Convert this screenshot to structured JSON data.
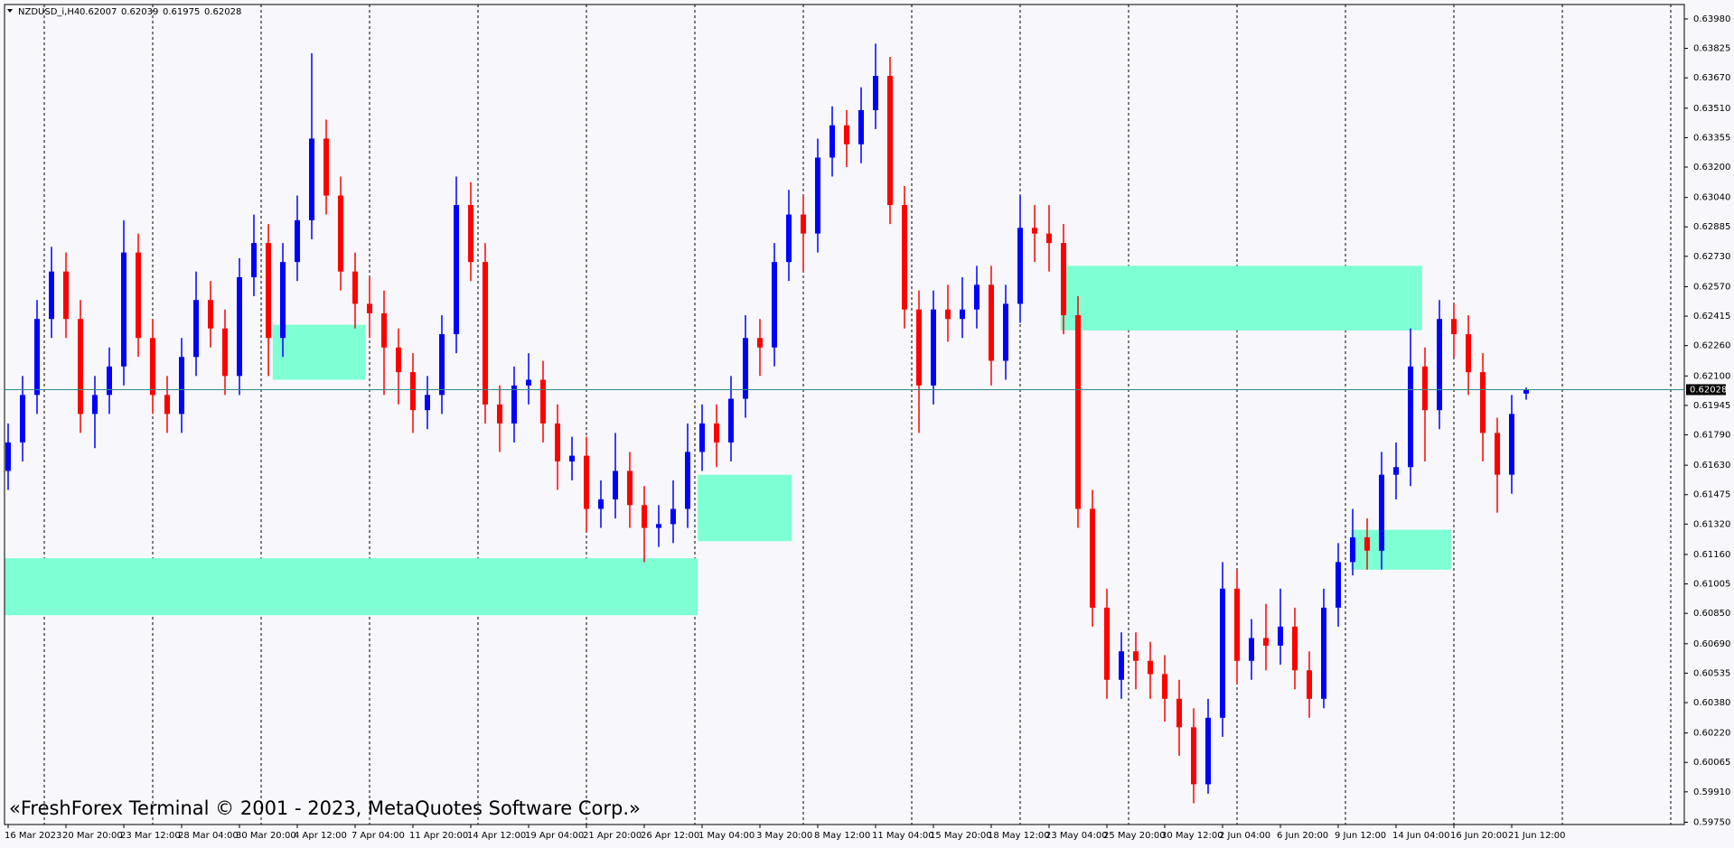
{
  "chart_data": {
    "type": "candlestick",
    "symbol": "NZDUSD_i,H4",
    "watermark": "«FreshForex Terminal © 2001 - 2023, MetaQuotes Software Corp.»",
    "categories": [
      "16 Mar 2023",
      null,
      null,
      null,
      "20 Mar 20:00",
      null,
      null,
      null,
      "23 Mar 12:00",
      null,
      null,
      null,
      "28 Mar 04:00",
      null,
      null,
      null,
      "30 Mar 20:00",
      null,
      null,
      null,
      "4 Apr 12:00",
      null,
      null,
      null,
      "7 Apr 04:00",
      null,
      null,
      null,
      "11 Apr 20:00",
      null,
      null,
      null,
      "14 Apr 12:00",
      null,
      null,
      null,
      "19 Apr 04:00",
      null,
      null,
      null,
      "21 Apr 20:00",
      null,
      null,
      null,
      "26 Apr 12:00",
      null,
      null,
      null,
      "1 May 04:00",
      null,
      null,
      null,
      "3 May 20:00",
      null,
      null,
      null,
      "8 May 12:00",
      null,
      null,
      null,
      "11 May 04:00",
      null,
      null,
      null,
      "15 May 20:00",
      null,
      null,
      null,
      "18 May 12:00",
      null,
      null,
      null,
      "23 May 04:00",
      null,
      null,
      null,
      "25 May 20:00",
      null,
      null,
      null,
      "30 May 12:00",
      null,
      null,
      null,
      "2 Jun 04:00",
      null,
      null,
      null,
      "6 Jun 20:00",
      null,
      null,
      null,
      "9 Jun 12:00",
      null,
      null,
      null,
      "14 Jun 04:00",
      null,
      null,
      null,
      "16 Jun 20:00",
      null,
      null,
      null,
      "21 Jun 12:00",
      null
    ],
    "open": [
      0.616,
      0.6175,
      0.62,
      0.624,
      0.6265,
      0.624,
      0.619,
      0.62,
      0.6215,
      0.6275,
      0.623,
      0.62,
      0.619,
      0.622,
      0.625,
      0.6235,
      0.621,
      0.6262,
      0.628,
      0.623,
      0.627,
      0.6292,
      0.6335,
      0.6305,
      0.6265,
      0.6248,
      0.6243,
      0.6225,
      0.6212,
      0.6192,
      0.62,
      0.6232,
      0.63,
      0.627,
      0.6195,
      0.6185,
      0.6205,
      0.6208,
      0.6185,
      0.6165,
      0.6168,
      0.614,
      0.6145,
      0.616,
      0.6142,
      0.613,
      0.6132,
      0.614,
      0.617,
      0.6185,
      0.6175,
      0.6198,
      0.623,
      0.6225,
      0.627,
      0.6295,
      0.6285,
      0.6325,
      0.6342,
      0.6332,
      0.635,
      0.6368,
      0.63,
      0.6245,
      0.6205,
      0.6245,
      0.624,
      0.6245,
      0.6258,
      0.6218,
      0.6248,
      0.6288,
      0.6285,
      0.628,
      0.6242,
      0.614,
      0.6088,
      0.605,
      0.6065,
      0.606,
      0.6053,
      0.604,
      0.6025,
      0.5995,
      0.603,
      0.6098,
      0.606,
      0.6072,
      0.6068,
      0.6078,
      0.6055,
      0.604,
      0.6088,
      0.6112,
      0.6125,
      0.6118,
      0.6158,
      0.6162,
      0.6215,
      0.6192,
      0.624,
      0.6232,
      0.6212,
      0.618,
      0.6158,
      0.62007
    ],
    "high": [
      0.6185,
      0.621,
      0.625,
      0.6278,
      0.6275,
      0.625,
      0.621,
      0.6225,
      0.6292,
      0.6285,
      0.624,
      0.621,
      0.623,
      0.6265,
      0.626,
      0.6245,
      0.6272,
      0.6295,
      0.629,
      0.628,
      0.6305,
      0.638,
      0.6345,
      0.6315,
      0.6275,
      0.6262,
      0.6255,
      0.6235,
      0.6222,
      0.621,
      0.6242,
      0.6315,
      0.6312,
      0.628,
      0.6205,
      0.6215,
      0.6222,
      0.6218,
      0.6195,
      0.6178,
      0.6178,
      0.6155,
      0.618,
      0.617,
      0.6152,
      0.6142,
      0.6155,
      0.6185,
      0.6195,
      0.6195,
      0.621,
      0.6242,
      0.624,
      0.628,
      0.6308,
      0.6305,
      0.6335,
      0.6352,
      0.635,
      0.6362,
      0.6385,
      0.6378,
      0.631,
      0.6255,
      0.6255,
      0.6258,
      0.6262,
      0.6268,
      0.6268,
      0.6258,
      0.6305,
      0.63,
      0.63,
      0.629,
      0.6252,
      0.615,
      0.6098,
      0.6075,
      0.6075,
      0.607,
      0.6063,
      0.605,
      0.6035,
      0.604,
      0.6112,
      0.6108,
      0.6082,
      0.609,
      0.6098,
      0.6088,
      0.6065,
      0.6098,
      0.6122,
      0.614,
      0.6135,
      0.617,
      0.6175,
      0.6235,
      0.6225,
      0.625,
      0.6248,
      0.6242,
      0.6222,
      0.6188,
      0.62,
      0.62039
    ],
    "low": [
      0.615,
      0.6165,
      0.619,
      0.623,
      0.623,
      0.618,
      0.6172,
      0.619,
      0.6205,
      0.622,
      0.619,
      0.618,
      0.618,
      0.621,
      0.6225,
      0.62,
      0.62,
      0.6252,
      0.621,
      0.622,
      0.626,
      0.6282,
      0.6295,
      0.6255,
      0.6235,
      0.623,
      0.62,
      0.6195,
      0.618,
      0.6182,
      0.619,
      0.6222,
      0.626,
      0.6185,
      0.617,
      0.6175,
      0.6195,
      0.6175,
      0.615,
      0.6155,
      0.6128,
      0.613,
      0.6135,
      0.613,
      0.6112,
      0.612,
      0.6122,
      0.613,
      0.616,
      0.6162,
      0.6165,
      0.6188,
      0.621,
      0.6215,
      0.626,
      0.6265,
      0.6275,
      0.6315,
      0.632,
      0.6322,
      0.634,
      0.629,
      0.6235,
      0.618,
      0.6195,
      0.6228,
      0.623,
      0.6235,
      0.6205,
      0.6208,
      0.6238,
      0.627,
      0.6265,
      0.6232,
      0.613,
      0.6078,
      0.604,
      0.604,
      0.6045,
      0.604,
      0.6028,
      0.601,
      0.5985,
      0.599,
      0.602,
      0.6048,
      0.605,
      0.6055,
      0.6058,
      0.6045,
      0.603,
      0.6035,
      0.6078,
      0.6105,
      0.6108,
      0.6108,
      0.6145,
      0.6152,
      0.6165,
      0.6182,
      0.622,
      0.62,
      0.6165,
      0.6138,
      0.6148,
      0.61975
    ],
    "close": [
      0.6175,
      0.62,
      0.624,
      0.6265,
      0.624,
      0.619,
      0.62,
      0.6215,
      0.6275,
      0.623,
      0.62,
      0.619,
      0.622,
      0.625,
      0.6235,
      0.621,
      0.6262,
      0.628,
      0.623,
      0.627,
      0.6292,
      0.6335,
      0.6305,
      0.6265,
      0.6248,
      0.6243,
      0.6225,
      0.6212,
      0.6192,
      0.62,
      0.6232,
      0.63,
      0.627,
      0.6195,
      0.6185,
      0.6205,
      0.6208,
      0.6185,
      0.6165,
      0.6168,
      0.614,
      0.6145,
      0.616,
      0.6142,
      0.613,
      0.6132,
      0.614,
      0.617,
      0.6185,
      0.6175,
      0.6198,
      0.623,
      0.6225,
      0.627,
      0.6295,
      0.6285,
      0.6325,
      0.6342,
      0.6332,
      0.635,
      0.6368,
      0.63,
      0.6245,
      0.6205,
      0.6245,
      0.624,
      0.6245,
      0.6258,
      0.6218,
      0.6248,
      0.6288,
      0.6285,
      0.628,
      0.6242,
      0.614,
      0.6088,
      0.605,
      0.6065,
      0.606,
      0.6053,
      0.604,
      0.6025,
      0.5995,
      0.603,
      0.6098,
      0.606,
      0.6072,
      0.6068,
      0.6078,
      0.6055,
      0.604,
      0.6088,
      0.6112,
      0.6125,
      0.6118,
      0.6158,
      0.6162,
      0.6215,
      0.6192,
      0.624,
      0.6232,
      0.6212,
      0.618,
      0.6158,
      0.619,
      0.62028
    ],
    "up_color": "#0000ff",
    "down_color": "#ff0000",
    "zones": [
      {
        "start": 18.3,
        "end": 24.7,
        "top": 0.6237,
        "bottom": 0.6208
      },
      {
        "start": -0.3,
        "end": 47.7,
        "top": 0.6114,
        "bottom": 0.6084
      },
      {
        "start": 47.7,
        "end": 54.2,
        "top": 0.6158,
        "bottom": 0.6123
      },
      {
        "start": 72.8,
        "end": 97.8,
        "top": 0.6268,
        "bottom": 0.6234
      },
      {
        "start": 92.9,
        "end": 99.8,
        "top": 0.6129,
        "bottom": 0.6108
      }
    ],
    "zone_color": "#7fffd4",
    "ylim": [
      0.59738,
      0.64056
    ],
    "yticks": [
      {
        "value": 0.6398,
        "label": "0.63980"
      },
      0.63825,
      {
        "value": 0.6367,
        "label": "0.63670"
      },
      {
        "value": 0.6351,
        "label": "0.63510"
      },
      0.63355,
      {
        "value": 0.632,
        "label": "0.63200"
      },
      {
        "value": 0.6304,
        "label": "0.63040"
      },
      0.62885,
      {
        "value": 0.6273,
        "label": "0.62730"
      },
      {
        "value": 0.6257,
        "label": "0.62570"
      },
      0.62415,
      {
        "value": 0.6226,
        "label": "0.62260"
      },
      {
        "value": 0.621,
        "label": "0.62100"
      },
      0.61945,
      {
        "value": 0.6179,
        "label": "0.61790"
      },
      {
        "value": 0.6163,
        "label": "0.61630"
      },
      0.61475,
      {
        "value": 0.6132,
        "label": "0.61320"
      },
      {
        "value": 0.6116,
        "label": "0.61160"
      },
      0.61005,
      {
        "value": 0.6085,
        "label": "0.60850"
      },
      {
        "value": 0.6069,
        "label": "0.60690"
      },
      0.60535,
      {
        "value": 0.6038,
        "label": "0.60380"
      },
      {
        "value": 0.6022,
        "label": "0.60220"
      },
      0.60065,
      {
        "value": 0.5991,
        "label": "0.59910"
      },
      {
        "value": 0.5975,
        "label": "0.59750"
      }
    ]
  }
}
